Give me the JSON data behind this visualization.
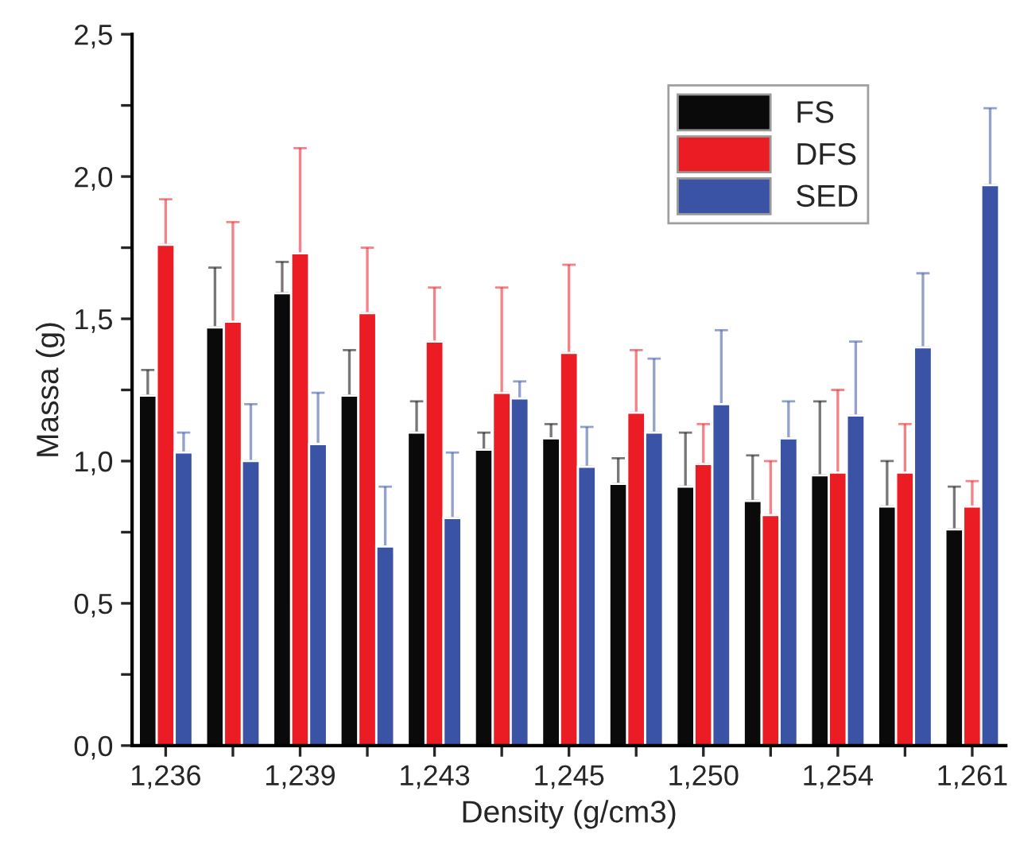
{
  "chart_data": {
    "type": "bar",
    "xlabel": "Density (g/cm3)",
    "ylabel": "Massa (g)",
    "categories": [
      "1,236",
      null,
      "1,239",
      null,
      "1,243",
      null,
      "1,245",
      null,
      "1,250",
      null,
      "1,254",
      null,
      "1,261"
    ],
    "series": [
      {
        "name": "FS",
        "color": "#0a0a0a",
        "values": [
          1.23,
          1.47,
          1.59,
          1.23,
          1.1,
          1.04,
          1.08,
          0.92,
          0.91,
          0.86,
          0.95,
          0.84,
          0.76
        ],
        "errors": [
          [
            1.23,
            1.32
          ],
          [
            1.47,
            1.68
          ],
          [
            1.59,
            1.7
          ],
          [
            1.23,
            1.39
          ],
          [
            1.1,
            1.21
          ],
          [
            1.04,
            1.1
          ],
          [
            1.08,
            1.13
          ],
          [
            0.92,
            1.01
          ],
          [
            0.91,
            1.1
          ],
          [
            0.86,
            1.02
          ],
          [
            0.95,
            1.21
          ],
          [
            0.84,
            1.0
          ],
          [
            0.76,
            0.91
          ]
        ]
      },
      {
        "name": "DFS",
        "color": "#ec1c24",
        "values": [
          1.76,
          1.49,
          1.73,
          1.52,
          1.42,
          1.24,
          1.38,
          1.17,
          0.99,
          0.81,
          0.96,
          0.96,
          0.84
        ],
        "errors": [
          [
            1.76,
            1.92
          ],
          [
            1.49,
            1.84
          ],
          [
            1.73,
            2.1
          ],
          [
            1.52,
            1.75
          ],
          [
            1.42,
            1.61
          ],
          [
            1.24,
            1.61
          ],
          [
            1.38,
            1.69
          ],
          [
            1.17,
            1.39
          ],
          [
            0.99,
            1.13
          ],
          [
            0.81,
            1.0
          ],
          [
            0.96,
            1.25
          ],
          [
            0.96,
            1.13
          ],
          [
            0.84,
            0.93
          ]
        ]
      },
      {
        "name": "SED",
        "color": "#3a53a4",
        "values": [
          1.03,
          1.0,
          1.06,
          0.7,
          0.8,
          1.22,
          0.98,
          1.1,
          1.2,
          1.08,
          1.16,
          1.4,
          1.97
        ],
        "errors": [
          [
            1.03,
            1.1
          ],
          [
            1.0,
            1.2
          ],
          [
            1.06,
            1.24
          ],
          [
            0.7,
            0.91
          ],
          [
            0.8,
            1.03
          ],
          [
            1.22,
            1.28
          ],
          [
            0.98,
            1.12
          ],
          [
            1.1,
            1.36
          ],
          [
            1.2,
            1.46
          ],
          [
            1.08,
            1.21
          ],
          [
            1.16,
            1.42
          ],
          [
            1.4,
            1.66
          ],
          [
            1.97,
            2.24
          ]
        ]
      }
    ],
    "ylim": [
      0,
      2.5
    ],
    "yticks": [
      {
        "value": 0,
        "label": "0,0"
      },
      {
        "value": 0.25,
        "label": null
      },
      {
        "value": 0.5,
        "label": "0,5"
      },
      {
        "value": 0.75,
        "label": null
      },
      {
        "value": 1.0,
        "label": "1,0"
      },
      {
        "value": 1.25,
        "label": null
      },
      {
        "value": 1.5,
        "label": "1,5"
      },
      {
        "value": 1.75,
        "label": null
      },
      {
        "value": 2.0,
        "label": "2,0"
      },
      {
        "value": 2.25,
        "label": null
      },
      {
        "value": 2.5,
        "label": "2,5"
      }
    ],
    "legend": "top right",
    "grid": false
  }
}
